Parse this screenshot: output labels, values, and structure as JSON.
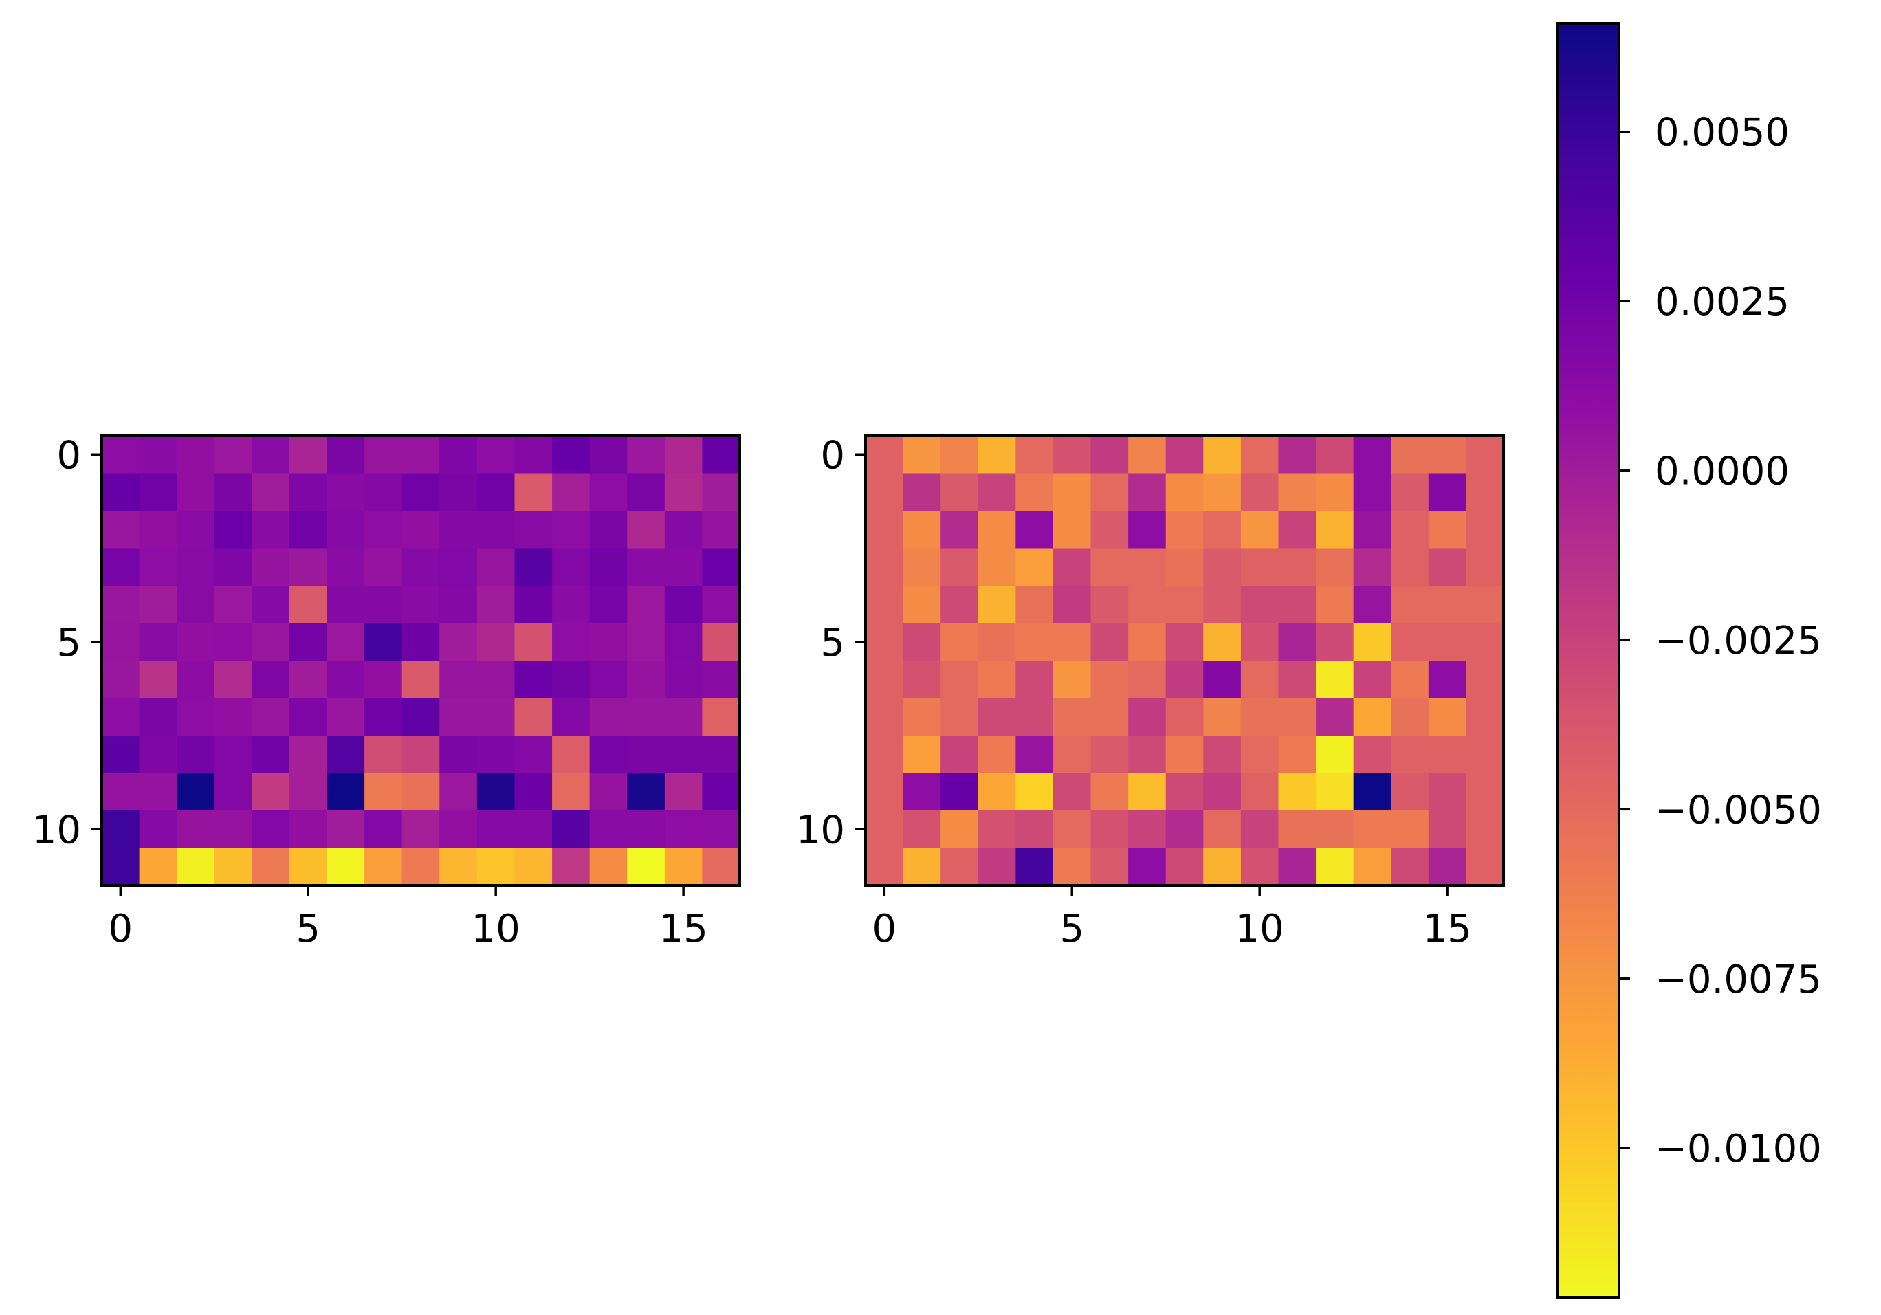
{
  "figure": {
    "colormap": "plasma_r",
    "colorbar": {
      "vmin": -0.0122,
      "vmax": 0.0066,
      "ticks": [
        0.005,
        0.0025,
        0.0,
        -0.0025,
        -0.005,
        -0.0075,
        -0.01
      ],
      "tick_labels": [
        "0.0050",
        "0.0025",
        "0.0000",
        "−0.0025",
        "−0.0050",
        "−0.0075",
        "−0.0100"
      ]
    }
  },
  "chart_data": [
    {
      "type": "heatmap",
      "rows": 12,
      "cols": 17,
      "xticks": [
        0,
        5,
        10,
        15
      ],
      "xtick_labels": [
        "0",
        "5",
        "10",
        "15"
      ],
      "yticks": [
        0,
        5,
        10
      ],
      "ytick_labels": [
        "0",
        "5",
        "10"
      ],
      "xlim": [
        -0.5,
        16.5
      ],
      "ylim": [
        11.5,
        -0.5
      ],
      "values": [
        [
          0.001,
          0.0012,
          0.0008,
          0.0003,
          0.0012,
          -0.0005,
          0.002,
          0.0005,
          0.0005,
          0.0018,
          0.001,
          0.0015,
          0.003,
          0.002,
          0.0003,
          -0.0008,
          0.003
        ],
        [
          0.003,
          0.0025,
          0.0008,
          0.002,
          0.0,
          0.0018,
          0.0012,
          0.0015,
          0.0025,
          0.002,
          0.0025,
          -0.004,
          -0.0002,
          0.001,
          0.002,
          -0.001,
          0.0
        ],
        [
          0.0004,
          0.0008,
          0.0012,
          0.0028,
          0.0012,
          0.0025,
          0.0014,
          0.001,
          0.0008,
          0.0015,
          0.0015,
          0.0013,
          0.001,
          0.002,
          -0.0008,
          0.0014,
          0.0006
        ],
        [
          0.0022,
          0.001,
          0.0013,
          0.0018,
          0.0006,
          0.0002,
          0.0012,
          0.0006,
          0.0014,
          0.0016,
          0.0005,
          0.0036,
          0.0016,
          0.0024,
          0.0012,
          0.0012,
          0.0028
        ],
        [
          0.0004,
          0.0,
          0.0013,
          0.0003,
          0.0014,
          -0.004,
          0.0015,
          0.0015,
          0.0012,
          0.0015,
          0.0,
          0.0026,
          0.0012,
          0.0022,
          0.0003,
          0.0025,
          0.001
        ],
        [
          0.0005,
          0.0013,
          0.0008,
          0.0009,
          0.0004,
          0.0023,
          0.0003,
          0.0045,
          0.0026,
          0.0,
          -0.0008,
          -0.0035,
          0.001,
          0.0008,
          0.0003,
          0.0016,
          -0.0035
        ],
        [
          0.0004,
          -0.0015,
          0.0011,
          -0.001,
          0.0018,
          0.0,
          0.0014,
          0.0008,
          -0.004,
          0.0005,
          0.0005,
          0.0028,
          0.0023,
          0.0016,
          0.0006,
          0.0015,
          0.0013
        ],
        [
          0.001,
          0.002,
          0.001,
          0.0008,
          0.0004,
          0.0018,
          0.0004,
          0.0025,
          0.0033,
          0.0004,
          0.0004,
          -0.004,
          0.0016,
          0.0004,
          0.0004,
          0.0004,
          -0.0045
        ],
        [
          0.0035,
          0.0018,
          0.0023,
          0.0016,
          0.0025,
          -0.0002,
          0.0038,
          -0.0032,
          -0.0025,
          0.002,
          0.0018,
          0.0014,
          -0.0042,
          0.0022,
          0.002,
          0.002,
          0.002
        ],
        [
          0.0006,
          0.0006,
          0.0066,
          0.0016,
          -0.002,
          -0.0002,
          0.0066,
          -0.006,
          -0.0055,
          0.0003,
          0.006,
          0.0027,
          -0.005,
          0.0006,
          0.0062,
          -0.0008,
          0.0028
        ],
        [
          0.0048,
          0.0014,
          0.0006,
          0.0006,
          0.0016,
          0.0008,
          0.0,
          0.0016,
          -0.0002,
          0.0008,
          0.0014,
          0.0014,
          0.0036,
          0.0012,
          0.0012,
          0.001,
          0.001
        ],
        [
          0.0048,
          -0.0085,
          -0.0118,
          -0.0095,
          -0.006,
          -0.0095,
          -0.012,
          -0.008,
          -0.006,
          -0.0092,
          -0.0098,
          -0.0092,
          -0.0018,
          -0.007,
          -0.0122,
          -0.0085,
          -0.005
        ]
      ]
    },
    {
      "type": "heatmap",
      "rows": 12,
      "cols": 17,
      "xticks": [
        0,
        5,
        10,
        15
      ],
      "xtick_labels": [
        "0",
        "5",
        "10",
        "15"
      ],
      "yticks": [
        0,
        5,
        10
      ],
      "ytick_labels": [
        "0",
        "5",
        "10"
      ],
      "xlim": [
        -0.5,
        16.5
      ],
      "ylim": [
        11.5,
        -0.5
      ],
      "values": [
        [
          -0.0045,
          -0.0075,
          -0.0065,
          -0.009,
          -0.005,
          -0.0035,
          -0.002,
          -0.0065,
          -0.002,
          -0.009,
          -0.005,
          -0.001,
          -0.003,
          0.001,
          -0.0055,
          -0.0055,
          -0.0045
        ],
        [
          -0.0045,
          -0.0015,
          -0.004,
          -0.0025,
          -0.006,
          -0.007,
          -0.005,
          -0.001,
          -0.007,
          -0.0075,
          -0.004,
          -0.0065,
          -0.007,
          0.001,
          -0.004,
          0.0015,
          -0.0045
        ],
        [
          -0.0045,
          -0.007,
          -0.001,
          -0.007,
          0.001,
          -0.007,
          -0.004,
          0.001,
          -0.006,
          -0.005,
          -0.0075,
          -0.0025,
          -0.009,
          0.0005,
          -0.0045,
          -0.006,
          -0.0045
        ],
        [
          -0.0045,
          -0.0065,
          -0.004,
          -0.007,
          -0.008,
          -0.0025,
          -0.005,
          -0.005,
          -0.0055,
          -0.004,
          -0.0045,
          -0.0045,
          -0.0055,
          -0.001,
          -0.0045,
          -0.003,
          -0.0045
        ],
        [
          -0.0045,
          -0.007,
          -0.003,
          -0.009,
          -0.0055,
          -0.002,
          -0.004,
          -0.005,
          -0.005,
          -0.004,
          -0.003,
          -0.003,
          -0.006,
          0.0005,
          -0.005,
          -0.005,
          -0.005
        ],
        [
          -0.0045,
          -0.003,
          -0.006,
          -0.0055,
          -0.006,
          -0.006,
          -0.003,
          -0.006,
          -0.003,
          -0.009,
          -0.0035,
          -0.0005,
          -0.003,
          -0.01,
          -0.0045,
          -0.0045,
          -0.0045
        ],
        [
          -0.0045,
          -0.0035,
          -0.005,
          -0.006,
          -0.003,
          -0.0075,
          -0.0055,
          -0.005,
          -0.002,
          0.0015,
          -0.005,
          -0.003,
          -0.0115,
          -0.0025,
          -0.006,
          0.001,
          -0.0045
        ],
        [
          -0.0045,
          -0.006,
          -0.005,
          -0.003,
          -0.003,
          -0.0055,
          -0.0055,
          -0.002,
          -0.0045,
          -0.0065,
          -0.0055,
          -0.0055,
          -0.001,
          -0.0085,
          -0.0055,
          -0.007,
          -0.0045
        ],
        [
          -0.0045,
          -0.008,
          -0.0025,
          -0.006,
          0.0005,
          -0.005,
          -0.004,
          -0.003,
          -0.006,
          -0.003,
          -0.005,
          -0.006,
          -0.0118,
          -0.0035,
          -0.0045,
          -0.0045,
          -0.0045
        ],
        [
          -0.0045,
          0.001,
          0.003,
          -0.0085,
          -0.0105,
          -0.003,
          -0.006,
          -0.0095,
          -0.003,
          -0.002,
          -0.0045,
          -0.01,
          -0.011,
          0.0066,
          -0.004,
          -0.003,
          -0.0045
        ],
        [
          -0.0045,
          -0.0035,
          -0.007,
          -0.0035,
          -0.003,
          -0.005,
          -0.0035,
          -0.0025,
          -0.001,
          -0.005,
          -0.0025,
          -0.0055,
          -0.0055,
          -0.006,
          -0.006,
          -0.003,
          -0.0045
        ],
        [
          -0.0045,
          -0.009,
          -0.0045,
          -0.002,
          0.0045,
          -0.006,
          -0.004,
          0.001,
          -0.003,
          -0.009,
          -0.0035,
          -0.0005,
          -0.0115,
          -0.008,
          -0.003,
          -0.0005,
          -0.0045
        ]
      ]
    }
  ]
}
